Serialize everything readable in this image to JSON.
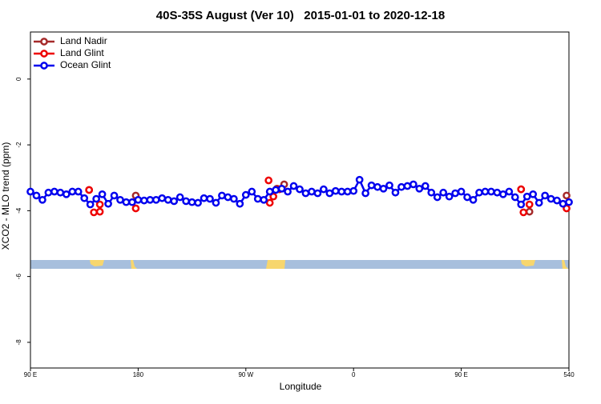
{
  "chart_data": {
    "type": "line",
    "title": "40S-35S August (Ver 10)   2015-01-01 to 2020-12-18",
    "x_label": "Longitude",
    "y_label": "XCO2 - MLO trend (ppm)",
    "xlim": [
      90,
      540
    ],
    "xticks": [
      {
        "value": 90,
        "label": "90 E"
      },
      180,
      {
        "value": 270,
        "label": "90 W"
      },
      {
        "value": 360,
        "label": "0"
      },
      {
        "value": 450,
        "label": "90 E"
      },
      540
    ],
    "ylim": [
      -8.78,
      1.43
    ],
    "yticks": [
      0,
      -2,
      -4,
      -6,
      -8
    ],
    "legend": "top-left",
    "series": [
      {
        "name": "Land Nadir",
        "color": "#a52a2a",
        "x": [
          139,
          178,
          296,
          302,
          500,
          507,
          538
        ],
        "values": [
          -3.37,
          -3.54,
          -3.33,
          -3.2,
          -3.35,
          -4.03,
          -3.54
        ]
      },
      {
        "name": "Land Glint",
        "color": "#ee0000",
        "x": [
          139,
          143,
          148,
          148,
          178,
          289,
          290,
          293,
          298,
          500,
          502,
          507,
          538
        ],
        "values": [
          -3.37,
          -4.05,
          -3.81,
          -4.03,
          -3.93,
          -3.08,
          -3.76,
          -3.57,
          -3.35,
          -3.35,
          -4.05,
          -3.81,
          -3.93
        ]
      },
      {
        "name": "Ocean Glint",
        "color": "#0000ee",
        "x": [
          90,
          95,
          100,
          105,
          110,
          115,
          120,
          125,
          130,
          135,
          140,
          145,
          150,
          155,
          160,
          165,
          170,
          175,
          180,
          185,
          190,
          195,
          200,
          205,
          210,
          215,
          220,
          225,
          230,
          235,
          240,
          245,
          250,
          255,
          260,
          265,
          270,
          275,
          280,
          285,
          290,
          295,
          300,
          305,
          310,
          315,
          320,
          325,
          330,
          335,
          340,
          345,
          350,
          355,
          360,
          365,
          370,
          375,
          380,
          385,
          390,
          395,
          400,
          405,
          410,
          415,
          420,
          425,
          430,
          435,
          440,
          445,
          450,
          455,
          460,
          465,
          470,
          475,
          480,
          485,
          490,
          495,
          500,
          505,
          510,
          515,
          520,
          525,
          530,
          535,
          540
        ],
        "values": [
          -3.42,
          -3.54,
          -3.67,
          -3.45,
          -3.42,
          -3.45,
          -3.5,
          -3.42,
          -3.42,
          -3.62,
          -3.81,
          -3.64,
          -3.5,
          -3.79,
          -3.54,
          -3.67,
          -3.74,
          -3.74,
          -3.67,
          -3.69,
          -3.67,
          -3.67,
          -3.62,
          -3.67,
          -3.71,
          -3.59,
          -3.71,
          -3.74,
          -3.76,
          -3.62,
          -3.64,
          -3.76,
          -3.54,
          -3.59,
          -3.64,
          -3.79,
          -3.52,
          -3.42,
          -3.64,
          -3.67,
          -3.42,
          -3.37,
          -3.33,
          -3.42,
          -3.25,
          -3.35,
          -3.47,
          -3.42,
          -3.47,
          -3.35,
          -3.47,
          -3.4,
          -3.42,
          -3.42,
          -3.4,
          -3.06,
          -3.47,
          -3.23,
          -3.28,
          -3.33,
          -3.23,
          -3.45,
          -3.28,
          -3.25,
          -3.2,
          -3.33,
          -3.25,
          -3.45,
          -3.59,
          -3.45,
          -3.57,
          -3.47,
          -3.42,
          -3.59,
          -3.67,
          -3.45,
          -3.42,
          -3.42,
          -3.45,
          -3.5,
          -3.42,
          -3.59,
          -3.81,
          -3.57,
          -3.5,
          -3.76,
          -3.54,
          -3.64,
          -3.69,
          -3.79,
          -3.74
        ]
      }
    ]
  }
}
